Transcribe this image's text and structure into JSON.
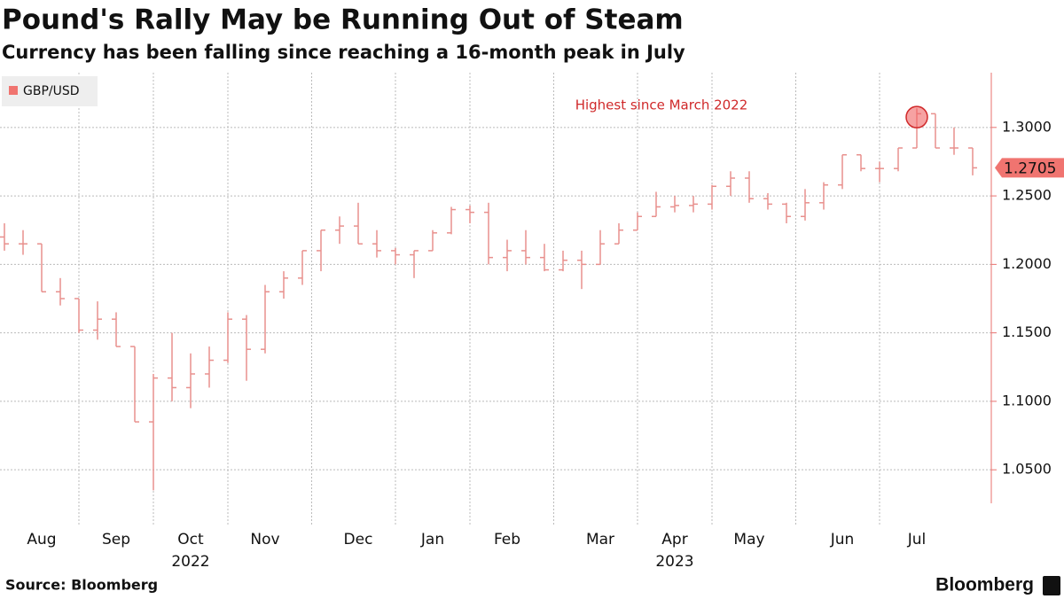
{
  "chart_data": {
    "type": "ohlc",
    "title": "Pound's Rally May be Running Out of Steam",
    "subtitle": "Currency has been falling since reaching a 16-month peak in July",
    "source": "Source: Bloomberg",
    "brand": "Bloomberg",
    "annotation": "Highest since March 2022",
    "years": [
      "2022",
      "2023"
    ],
    "categories": [
      null,
      null,
      "Aug",
      null,
      null,
      null,
      "Sep",
      null,
      null,
      null,
      "Oct",
      null,
      null,
      null,
      "Nov",
      null,
      null,
      null,
      null,
      "Dec",
      null,
      null,
      null,
      "Jan",
      null,
      null,
      null,
      "Feb",
      null,
      null,
      null,
      null,
      "Mar",
      null,
      null,
      null,
      "Apr",
      null,
      null,
      null,
      "May",
      null,
      null,
      null,
      null,
      "Jun",
      null,
      null,
      null,
      "Jul",
      null,
      null,
      null
    ],
    "series": [
      {
        "name": "GBP/USD",
        "color": "#e8908d",
        "legend_color": "#f07470",
        "open": [
          1.22,
          1.215,
          1.215,
          1.18,
          1.175,
          1.152,
          1.16,
          1.14,
          1.085,
          1.117,
          1.11,
          1.12,
          1.13,
          1.16,
          1.138,
          1.18,
          1.19,
          1.21,
          1.225,
          1.228,
          1.215,
          1.21,
          1.207,
          1.21,
          1.223,
          1.24,
          1.238,
          1.205,
          1.21,
          1.205,
          1.196,
          1.203,
          1.2,
          1.215,
          1.225,
          1.235,
          1.242,
          1.243,
          1.244,
          1.257,
          1.263,
          1.248,
          1.244,
          1.235,
          1.245,
          1.258,
          1.28,
          1.27,
          1.27,
          1.285,
          1.31,
          1.285,
          1.285
        ],
        "high": [
          1.23,
          1.225,
          1.215,
          1.19,
          1.175,
          1.173,
          1.165,
          1.14,
          1.12,
          1.15,
          1.135,
          1.14,
          1.165,
          1.163,
          1.185,
          1.195,
          1.21,
          1.225,
          1.235,
          1.245,
          1.225,
          1.212,
          1.21,
          1.225,
          1.242,
          1.243,
          1.245,
          1.218,
          1.225,
          1.215,
          1.21,
          1.21,
          1.225,
          1.23,
          1.238,
          1.253,
          1.25,
          1.25,
          1.258,
          1.268,
          1.268,
          1.252,
          1.245,
          1.255,
          1.26,
          1.28,
          1.28,
          1.275,
          1.285,
          1.314,
          1.31,
          1.3,
          1.285
        ],
        "low": [
          1.21,
          1.207,
          1.18,
          1.17,
          1.15,
          1.145,
          1.14,
          1.085,
          1.035,
          1.1,
          1.095,
          1.11,
          1.128,
          1.115,
          1.135,
          1.175,
          1.185,
          1.195,
          1.215,
          1.215,
          1.205,
          1.2,
          1.19,
          1.21,
          1.222,
          1.23,
          1.2,
          1.195,
          1.2,
          1.195,
          1.195,
          1.182,
          1.2,
          1.215,
          1.225,
          1.235,
          1.238,
          1.238,
          1.24,
          1.25,
          1.245,
          1.24,
          1.23,
          1.232,
          1.24,
          1.255,
          1.268,
          1.26,
          1.268,
          1.285,
          1.285,
          1.28,
          1.265
        ],
        "close": [
          1.215,
          1.215,
          1.18,
          1.175,
          1.152,
          1.16,
          1.14,
          1.085,
          1.117,
          1.11,
          1.12,
          1.13,
          1.16,
          1.138,
          1.18,
          1.19,
          1.21,
          1.225,
          1.228,
          1.215,
          1.21,
          1.207,
          1.21,
          1.223,
          1.24,
          1.238,
          1.205,
          1.21,
          1.205,
          1.196,
          1.203,
          1.2,
          1.215,
          1.225,
          1.235,
          1.242,
          1.243,
          1.244,
          1.257,
          1.263,
          1.248,
          1.244,
          1.235,
          1.245,
          1.258,
          1.28,
          1.27,
          1.27,
          1.285,
          1.31,
          1.285,
          1.285,
          1.2705
        ]
      }
    ],
    "ylim": [
      1.01,
      1.34
    ],
    "yticks": [
      {
        "value": 1.05,
        "label": "1.0500"
      },
      {
        "value": 1.1,
        "label": "1.1000"
      },
      {
        "value": 1.15,
        "label": "1.1500"
      },
      {
        "value": 1.2,
        "label": "1.2000"
      },
      {
        "value": 1.25,
        "label": "1.2500"
      },
      {
        "value": 1.3,
        "label": "1.3000"
      }
    ],
    "grid": true,
    "legend": "top-left",
    "axis_color": "#e8716e",
    "annotation_color": "#d0292a"
  }
}
